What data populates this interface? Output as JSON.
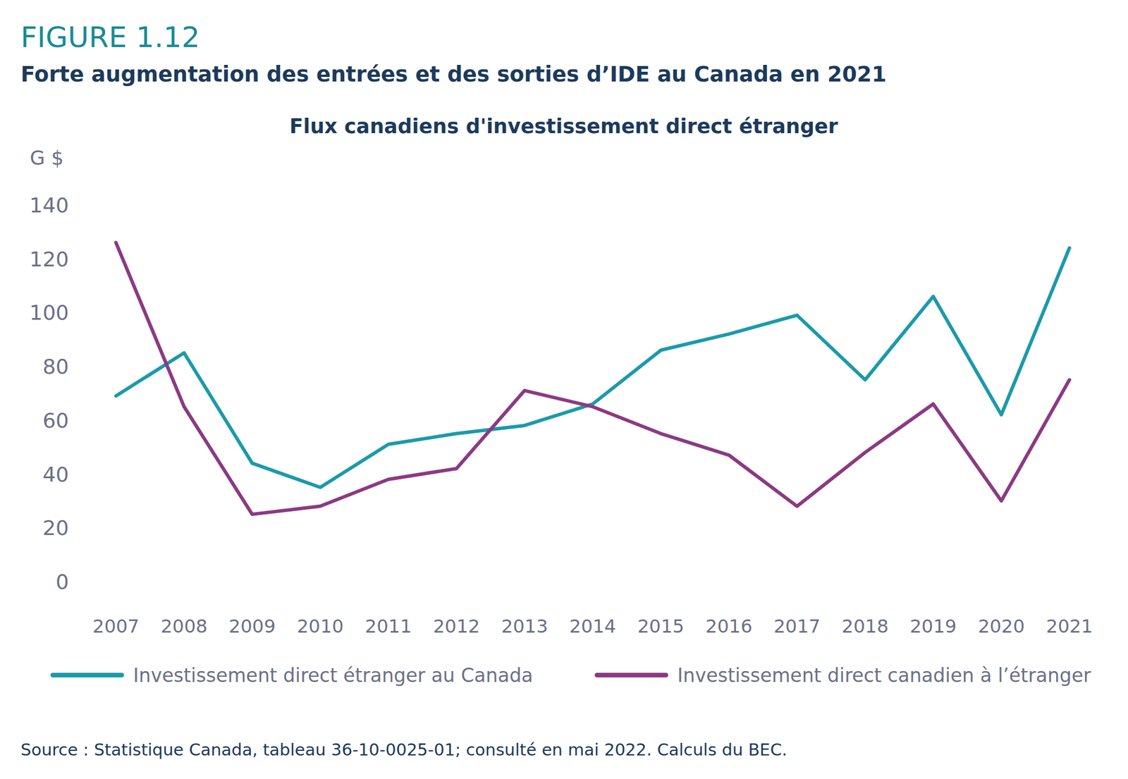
{
  "chart_data": {
    "type": "line",
    "figure_label": "FIGURE 1.12",
    "heading": "Forte augmentation des entrées et des sorties d’IDE au Canada en 2021",
    "title": "Flux canadiens d'investissement direct étranger",
    "y_label": "G $",
    "source": "Source : Statistique Canada, tableau 36-10-0025-01; consulté en mai 2022. Calculs du BEC.",
    "categories": [
      "2007",
      "2008",
      "2009",
      "2010",
      "2011",
      "2012",
      "2013",
      "2014",
      "2015",
      "2016",
      "2017",
      "2018",
      "2019",
      "2020",
      "2021"
    ],
    "series": [
      {
        "name": "Investissement direct étranger au Canada",
        "color": "#1b9aaa",
        "values": [
          69,
          85,
          44,
          35,
          51,
          55,
          58,
          66,
          86,
          92,
          99,
          75,
          106,
          62,
          124
        ]
      },
      {
        "name": "Investissement direct canadien à l’étranger",
        "color": "#8b3a82",
        "values": [
          126,
          65,
          25,
          28,
          38,
          42,
          71,
          65,
          55,
          47,
          28,
          48,
          66,
          30,
          75
        ]
      }
    ],
    "ylim": [
      0,
      140
    ],
    "yticks": [
      0,
      20,
      40,
      60,
      80,
      100,
      120,
      140
    ],
    "grid": false,
    "legend": "bottom"
  }
}
